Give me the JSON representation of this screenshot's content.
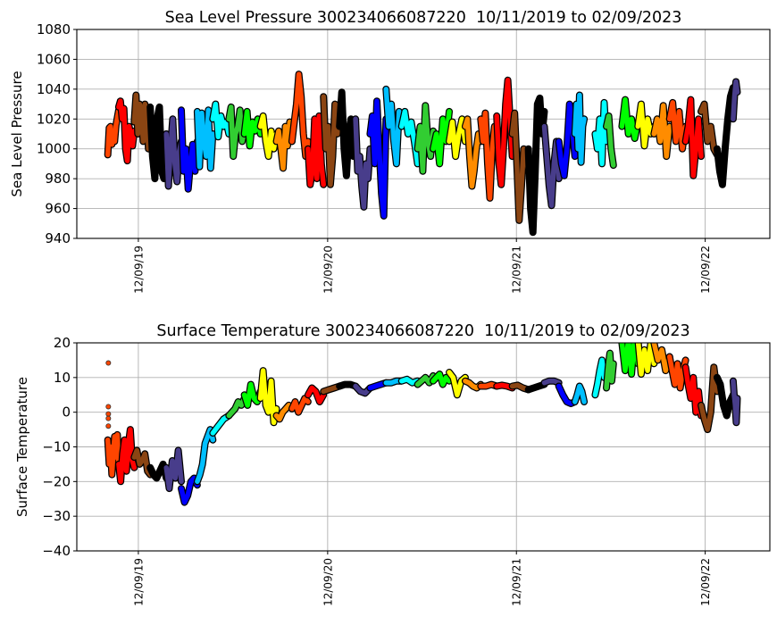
{
  "month_colors": {
    "01": "#000000",
    "02": "#483d8b",
    "03": "#0000ff",
    "04": "#00bfff",
    "05": "#00ffff",
    "06": "#32cd32",
    "07": "#00ff00",
    "08": "#ffff00",
    "09": "#ff8c00",
    "10": "#ff4500",
    "11": "#ff0000",
    "12": "#8b4513"
  },
  "chart_data": [
    {
      "type": "scatter",
      "title": "Sea Level Pressure 300234066087220  10/11/2019 to 02/09/2023",
      "xlabel": "",
      "ylabel": "Sea Level Pressure",
      "ylim": [
        940,
        1080
      ],
      "yticks": [
        940,
        960,
        980,
        1000,
        1020,
        1040,
        1060,
        1080
      ],
      "xlim": [
        "2019-08-12",
        "2023-04-13"
      ],
      "xticks": [
        "2019-12-09",
        "2020-12-09",
        "2021-12-09",
        "2022-12-09"
      ],
      "xtick_labels": [
        "12/09/19",
        "12/09/20",
        "12/09/21",
        "12/09/22"
      ],
      "grid": true,
      "date_range": [
        "2019-10-11",
        "2023-02-09"
      ],
      "segments": [
        {
          "month": "2019-10",
          "values": [
            996,
            1014,
            1015,
            1003,
            1010,
            1005,
            1016,
            1021,
            1026
          ]
        },
        {
          "month": "2019-11",
          "values": [
            1028,
            1032,
            1020,
            1027,
            1000,
            992,
            1015,
            1010,
            1002,
            1012
          ]
        },
        {
          "month": "2019-12",
          "values": [
            1018,
            1036,
            1010,
            1030,
            1025,
            1005,
            1030,
            1026,
            1000,
            1012
          ]
        },
        {
          "month": "2020-01",
          "values": [
            1028,
            995,
            980,
            1020,
            1028,
            985,
            980,
            1010
          ]
        },
        {
          "month": "2020-02",
          "values": [
            1010,
            975,
            1000,
            1020,
            990,
            978,
            998,
            1005
          ]
        },
        {
          "month": "2020-03",
          "values": [
            1026,
            985,
            1000,
            973,
            990,
            1003,
            985,
            1005
          ]
        },
        {
          "month": "2020-04",
          "values": [
            1025,
            988,
            1024,
            1005,
            995,
            1026,
            987,
            1010
          ]
        },
        {
          "month": "2020-05",
          "values": [
            1020,
            1030,
            1008,
            1022,
            1015,
            1018,
            1010
          ]
        },
        {
          "month": "2020-06",
          "values": [
            1020,
            1028,
            995,
            1010,
            1015,
            1026,
            1005,
            1012
          ]
        },
        {
          "month": "2020-07",
          "values": [
            1010,
            1025,
            1002,
            1018,
            1012,
            1020,
            1010
          ]
        },
        {
          "month": "2020-08",
          "values": [
            1015,
            1022,
            1005,
            995,
            1012,
            1000,
            1010
          ]
        },
        {
          "month": "2020-09",
          "values": [
            1005,
            1012,
            1000,
            987,
            1015,
            1002,
            1018,
            1005
          ]
        },
        {
          "month": "2020-10",
          "values": [
            1005,
            1018,
            1030,
            1050,
            1035,
            1010,
            995,
            1005
          ]
        },
        {
          "month": "2020-11",
          "values": [
            1000,
            976,
            985,
            1020,
            980,
            1022,
            990,
            976
          ]
        },
        {
          "month": "2020-12",
          "values": [
            1035,
            1000,
            1015,
            976,
            995,
            1030,
            1010,
            1030
          ]
        },
        {
          "month": "2021-01",
          "values": [
            1015,
            1038,
            1000,
            982,
            1010,
            1020,
            995,
            1005
          ]
        },
        {
          "month": "2021-02",
          "values": [
            1020,
            985,
            995,
            975,
            961,
            990,
            980,
            1000
          ]
        },
        {
          "month": "2021-03",
          "values": [
            1010,
            1022,
            990,
            1032,
            1000,
            970,
            955,
            1020
          ]
        },
        {
          "month": "2021-04",
          "values": [
            1040,
            1015,
            1030,
            1005,
            990,
            1025,
            1020
          ]
        },
        {
          "month": "2021-05",
          "values": [
            1015,
            1025,
            1010,
            1018,
            1005,
            990
          ]
        },
        {
          "month": "2021-06",
          "values": [
            1000,
            1015,
            985,
            1029,
            1005,
            995,
            1012
          ]
        },
        {
          "month": "2021-07",
          "values": [
            1000,
            1010,
            990,
            1020,
            1005,
            1025
          ]
        },
        {
          "month": "2021-08",
          "values": [
            1005,
            1018,
            995,
            1010,
            1020,
            1005
          ]
        },
        {
          "month": "2021-09",
          "values": [
            1015,
            1020,
            995,
            975,
            985,
            1000,
            1010,
            1005
          ]
        },
        {
          "month": "2021-10",
          "values": [
            1020,
            1005,
            1024,
            990,
            967,
            1000,
            1015,
            1010
          ]
        },
        {
          "month": "2021-11",
          "values": [
            1022,
            990,
            976,
            1000,
            1030,
            1046,
            1020,
            995
          ]
        },
        {
          "month": "2021-12",
          "values": [
            1010,
            1024,
            990,
            952,
            975,
            1000,
            995,
            985
          ]
        },
        {
          "month": "2022-01",
          "values": [
            1000,
            960,
            944,
            985,
            1030,
            1034,
            1010,
            1025
          ]
        },
        {
          "month": "2022-02",
          "values": [
            1015,
            995,
            975,
            962,
            990,
            1005,
            980
          ]
        },
        {
          "month": "2022-03",
          "values": [
            1005,
            990,
            982,
            1000,
            1030,
            1015,
            995
          ]
        },
        {
          "month": "2022-04",
          "values": [
            1010,
            1030,
            1000,
            1036,
            991,
            1015,
            1020
          ],
          "span": [
            0,
            0.6
          ]
        },
        {
          "month": "2022-05",
          "values": [
            1010,
            1000,
            1020,
            990,
            1031,
            1005
          ],
          "span": [
            0.3,
            1
          ]
        },
        {
          "month": "2022-06",
          "values": [
            1015,
            1022,
            1000,
            989
          ],
          "span": [
            0,
            0.45
          ]
        },
        {
          "month": "2022-07",
          "values": [
            1015,
            1033,
            1010,
            1020,
            1007,
            1018
          ]
        },
        {
          "month": "2022-08",
          "values": [
            1015,
            1030,
            1002,
            1020,
            1010,
            1015
          ]
        },
        {
          "month": "2022-09",
          "values": [
            1010,
            1020,
            1005,
            1029,
            995,
            1015
          ]
        },
        {
          "month": "2022-10",
          "values": [
            1020,
            1031,
            1005,
            1025,
            1000,
            1015
          ]
        },
        {
          "month": "2022-11",
          "values": [
            1005,
            1015,
            1033,
            982,
            1000,
            1020,
            995
          ]
        },
        {
          "month": "2022-12",
          "values": [
            1025,
            1030,
            1005,
            1015,
            1000,
            996
          ]
        },
        {
          "month": "2023-01",
          "values": [
            1000,
            985,
            976,
            1000,
            1020,
            1035,
            1041
          ]
        },
        {
          "month": "2023-02",
          "values": [
            1020,
            1035,
            1045,
            1038
          ]
        }
      ]
    },
    {
      "type": "scatter",
      "title": "Surface Temperature 300234066087220  10/11/2019 to 02/09/2023",
      "xlabel": "",
      "ylabel": "Surface Temperature",
      "ylim": [
        -40,
        20
      ],
      "yticks": [
        -40,
        -30,
        -20,
        -10,
        0,
        10,
        20
      ],
      "xlim": [
        "2019-08-12",
        "2023-04-13"
      ],
      "xticks": [
        "2019-12-09",
        "2020-12-09",
        "2021-12-09",
        "2022-12-09"
      ],
      "xtick_labels": [
        "12/09/19",
        "12/09/20",
        "12/09/21",
        "12/09/22"
      ],
      "grid": true,
      "date_range": [
        "2019-10-11",
        "2023-02-09"
      ],
      "segments": [
        {
          "month": "2019-10",
          "values": [
            -8,
            -15,
            -10,
            -18,
            -12,
            -7,
            -13,
            -6.5,
            -16
          ],
          "outliers": [
            14.2,
            1.6,
            -0.5,
            -1.8,
            -4
          ]
        },
        {
          "month": "2019-11",
          "values": [
            -15,
            -20,
            -12,
            -8,
            -17,
            -9,
            -5,
            -14,
            -16
          ]
        },
        {
          "month": "2019-12",
          "values": [
            -13,
            -11,
            -15,
            -14,
            -12,
            -17,
            -18
          ]
        },
        {
          "month": "2020-01",
          "values": [
            -16,
            -18,
            -19,
            -17,
            -15,
            -19
          ]
        },
        {
          "month": "2020-02",
          "values": [
            -16,
            -22,
            -14,
            -19,
            -11,
            -20
          ]
        },
        {
          "month": "2020-03",
          "values": [
            -22,
            -26,
            -24,
            -20,
            -19,
            -21
          ]
        },
        {
          "month": "2020-04",
          "values": [
            -20,
            -18,
            -15,
            -9,
            -7,
            -5,
            -8
          ]
        },
        {
          "month": "2020-05",
          "values": [
            -6,
            -4,
            -2,
            -1
          ]
        },
        {
          "month": "2020-06",
          "values": [
            -1,
            0,
            1,
            3,
            2,
            4
          ]
        },
        {
          "month": "2020-07",
          "values": [
            5,
            2,
            8,
            4,
            3,
            6
          ]
        },
        {
          "month": "2020-08",
          "values": [
            4,
            12,
            2,
            0,
            9,
            -3,
            1
          ]
        },
        {
          "month": "2020-09",
          "values": [
            -1,
            -2,
            0,
            1,
            2,
            1
          ]
        },
        {
          "month": "2020-10",
          "values": [
            1,
            3,
            0,
            2,
            4,
            3
          ]
        },
        {
          "month": "2020-11",
          "values": [
            5,
            7,
            6,
            3,
            5
          ]
        },
        {
          "month": "2020-12",
          "values": [
            6,
            6.5,
            7,
            7.5
          ]
        },
        {
          "month": "2021-01",
          "values": [
            7.5,
            8,
            8,
            7.5
          ]
        },
        {
          "month": "2021-02",
          "values": [
            7.5,
            6,
            5.5,
            7
          ]
        },
        {
          "month": "2021-03",
          "values": [
            7,
            7.5,
            8,
            8.5
          ]
        },
        {
          "month": "2021-04",
          "values": [
            8.5,
            8.5,
            9,
            9
          ]
        },
        {
          "month": "2021-05",
          "values": [
            9,
            9.5,
            8.5,
            9
          ]
        },
        {
          "month": "2021-06",
          "values": [
            8,
            9,
            10,
            8.5,
            10.5
          ]
        },
        {
          "month": "2021-07",
          "values": [
            9,
            10,
            11,
            8,
            10,
            9
          ]
        },
        {
          "month": "2021-08",
          "values": [
            11.5,
            10,
            5,
            9,
            10
          ]
        },
        {
          "month": "2021-09",
          "values": [
            9,
            8.5,
            7.5,
            7,
            8
          ]
        },
        {
          "month": "2021-10",
          "values": [
            7.5,
            7.5,
            8,
            7.5
          ]
        },
        {
          "month": "2021-11",
          "values": [
            7.5,
            7.8,
            7.5,
            7
          ]
        },
        {
          "month": "2021-12",
          "values": [
            7.5,
            7.8,
            7,
            6.5
          ]
        },
        {
          "month": "2022-01",
          "values": [
            6.5,
            7,
            7.5,
            8
          ]
        },
        {
          "month": "2022-02",
          "values": [
            8.5,
            9,
            9,
            8.5
          ]
        },
        {
          "month": "2022-03",
          "values": [
            7.5,
            5,
            3,
            2.5,
            3
          ]
        },
        {
          "month": "2022-04",
          "values": [
            3,
            5,
            7.5,
            6,
            3
          ],
          "span": [
            0,
            0.6
          ]
        },
        {
          "month": "2022-05",
          "values": [
            5,
            8,
            12,
            15,
            10,
            13
          ],
          "span": [
            0.3,
            1
          ]
        },
        {
          "month": "2022-06",
          "values": [
            7,
            13,
            17,
            9,
            14
          ],
          "span": [
            0,
            0.45
          ]
        },
        {
          "month": "2022-07",
          "values": [
            20,
            12,
            21,
            11,
            22,
            14
          ]
        },
        {
          "month": "2022-08",
          "values": [
            21,
            11,
            18,
            12,
            20,
            14
          ]
        },
        {
          "month": "2022-09",
          "values": [
            20,
            15,
            18,
            12,
            16
          ]
        },
        {
          "month": "2022-10",
          "values": [
            16,
            12,
            8,
            14,
            7,
            12,
            15
          ]
        },
        {
          "month": "2022-11",
          "values": [
            13,
            8,
            4,
            10,
            0,
            6,
            -1
          ]
        },
        {
          "month": "2022-12",
          "values": [
            2,
            -2,
            -5,
            0,
            13,
            6
          ]
        },
        {
          "month": "2023-01",
          "values": [
            10,
            8,
            2,
            -1,
            3,
            5
          ]
        },
        {
          "month": "2023-02",
          "values": [
            9,
            5,
            2,
            -3,
            4
          ]
        }
      ]
    }
  ]
}
